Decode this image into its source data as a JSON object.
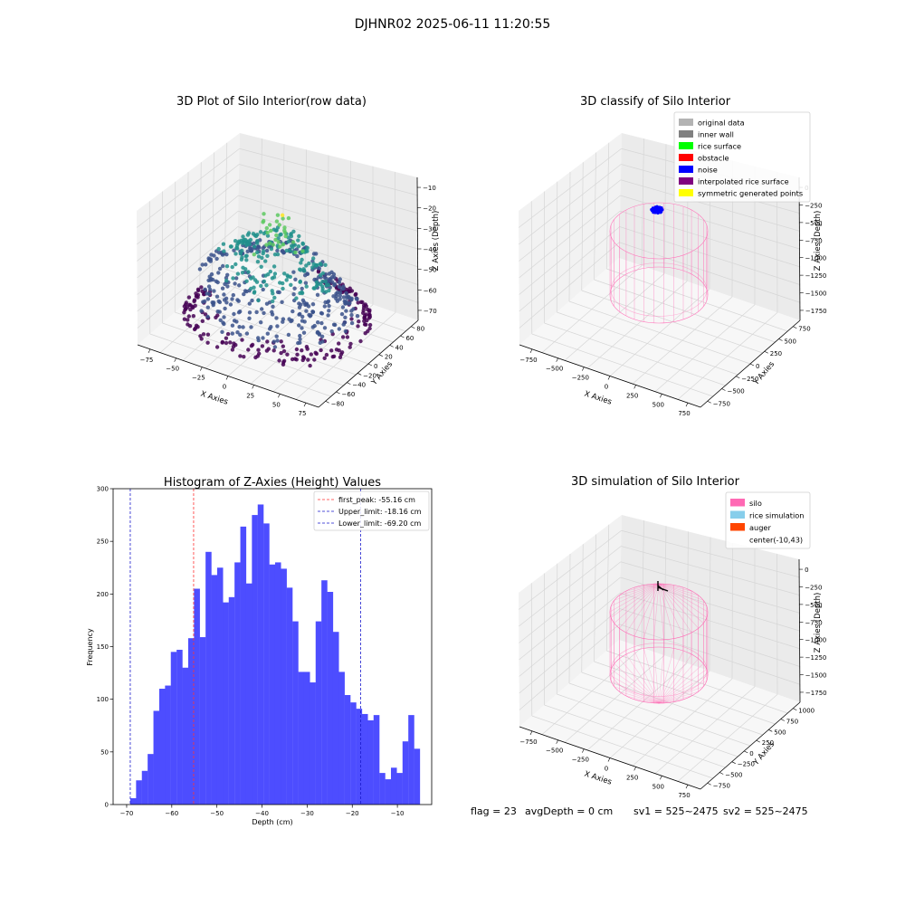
{
  "figure": {
    "suptitle": "DJHNR02 2025-06-11 11:20:55",
    "status": {
      "flag": "flag = 23",
      "avg_depth": "avgDepth = 0 cm",
      "sv1": "sv1 = 525~2475",
      "sv2": "sv2 = 525~2475"
    }
  },
  "chart_data": [
    {
      "id": "raw",
      "type": "scatter",
      "projection": "3d",
      "title": "3D Plot of Silo Interior(row data)",
      "xlabel": "X Axies",
      "ylabel": "Y Axies",
      "zlabel": "Z Axies (Depth)",
      "x_ticks": [
        "−75",
        "−50",
        "−25",
        "0",
        "25",
        "50",
        "75"
      ],
      "y_ticks": [
        "−80",
        "−60",
        "−40",
        "−20",
        "0",
        "20",
        "40",
        "60",
        "80"
      ],
      "z_ticks": [
        "−10",
        "−20",
        "−30",
        "−40",
        "−50",
        "−60",
        "−70"
      ],
      "xlim": [
        -85,
        85
      ],
      "ylim": [
        -85,
        85
      ],
      "zlim": [
        -75,
        -5
      ],
      "colormap": [
        "#440154",
        "#3b528b",
        "#21918c",
        "#5ec962",
        "#fde725"
      ],
      "grid": true
    },
    {
      "id": "classify",
      "type": "scatter",
      "projection": "3d",
      "title": "3D classify of Silo Interior",
      "xlabel": "X Axies",
      "ylabel": "Y Axies",
      "zlabel": "Z Axies (Depth)",
      "x_ticks": [
        "−750",
        "−500",
        "−250",
        "0",
        "250",
        "500",
        "750"
      ],
      "y_ticks": [
        "−750",
        "−500",
        "−250",
        "0",
        "250",
        "500",
        "750"
      ],
      "z_ticks": [
        "0",
        "−250",
        "−500",
        "−750",
        "−1000",
        "−1250",
        "−1500",
        "−1750"
      ],
      "legend": [
        {
          "label": "original data",
          "color": "#b3b3b3"
        },
        {
          "label": "inner wall",
          "color": "#808080"
        },
        {
          "label": "rice surface",
          "color": "#00ff00"
        },
        {
          "label": "obstacle",
          "color": "#ff0000"
        },
        {
          "label": "noise",
          "color": "#0000ff"
        },
        {
          "label": "interpolated rice surface",
          "color": "#800080"
        },
        {
          "label": "symmetric generated points",
          "color": "#ffff00"
        }
      ],
      "legend_loc": "upper right",
      "silo_color": "#ff77bb",
      "noise_color": "#0000ff",
      "grid": true
    },
    {
      "id": "hist",
      "type": "bar",
      "title": "Histogram of Z-Axies (Height) Values",
      "xlabel": "Depth (cm)",
      "ylabel": "Frequency",
      "xlim": [
        -73,
        -2.4
      ],
      "ylim": [
        0,
        300
      ],
      "x_ticks": [
        -70,
        -60,
        -50,
        -40,
        -30,
        -20,
        -10
      ],
      "x_tick_labels": [
        "−70",
        "−60",
        "−50",
        "−40",
        "−30",
        "−20",
        "−10"
      ],
      "y_ticks": [
        0,
        50,
        100,
        150,
        200,
        250,
        300
      ],
      "y_tick_labels": [
        "0",
        "50",
        "100",
        "150",
        "200",
        "250",
        "300"
      ],
      "bin_start": -69.2,
      "bin_width": 1.2838,
      "values": [
        6,
        23,
        32,
        48,
        89,
        110,
        113,
        145,
        147,
        130,
        158,
        205,
        159,
        240,
        218,
        225,
        192,
        197,
        230,
        264,
        210,
        275,
        285,
        267,
        228,
        230,
        224,
        206,
        174,
        126,
        126,
        116,
        174,
        213,
        202,
        164,
        126,
        104,
        97,
        91,
        86,
        80,
        85,
        30,
        24,
        35,
        30,
        60,
        85,
        53
      ],
      "bar_color": "#4d4dff",
      "lines": [
        {
          "label": "first_peak: -55.16 cm",
          "x": -55.16,
          "color": "#ff3333"
        },
        {
          "label": "Upper_limit: -18.16 cm",
          "x": -18.16,
          "color": "#1a1acc"
        },
        {
          "label": "Lower_limit: -69.20 cm",
          "x": -69.2,
          "color": "#1a1acc"
        }
      ],
      "legend_loc": "upper right"
    },
    {
      "id": "sim",
      "type": "scatter",
      "projection": "3d",
      "title": "3D simulation of Silo Interior",
      "xlabel": "X Axies",
      "ylabel": "Y Axies",
      "zlabel": "Z Axies (Depth)",
      "x_ticks": [
        "−750",
        "−500",
        "−250",
        "0",
        "250",
        "500",
        "750"
      ],
      "y_ticks": [
        "−750",
        "−500",
        "−250",
        "0",
        "250",
        "500",
        "750",
        "1000"
      ],
      "z_ticks": [
        "0",
        "−250",
        "−500",
        "−750",
        "−1000",
        "−1250",
        "−1500",
        "−1750"
      ],
      "legend": [
        {
          "label": "silo",
          "color": "#ff69b4"
        },
        {
          "label": "rice simulation",
          "color": "#87ceeb"
        },
        {
          "label": "auger",
          "color": "#ff4500"
        },
        {
          "label": "center(-10,43)",
          "color": "#ffffff"
        }
      ],
      "legend_loc": "upper right",
      "silo_color": "#ff69b4",
      "grid": true
    }
  ]
}
